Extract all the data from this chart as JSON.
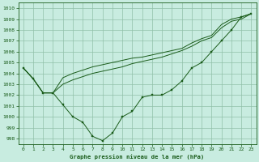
{
  "title": "Graphe pression niveau de la mer (hPa)",
  "bg_color": "#c8ece0",
  "grid_color": "#90c0a8",
  "line_color": "#1a5c1a",
  "ylim": [
    997.5,
    1010.5
  ],
  "xlim": [
    -0.5,
    23.5
  ],
  "yticks": [
    998,
    999,
    1000,
    1001,
    1002,
    1003,
    1004,
    1005,
    1006,
    1007,
    1008,
    1009,
    1010
  ],
  "xticks": [
    0,
    1,
    2,
    3,
    4,
    5,
    6,
    7,
    8,
    9,
    10,
    11,
    12,
    13,
    14,
    15,
    16,
    17,
    18,
    19,
    20,
    21,
    22,
    23
  ],
  "series_wavy": [
    1004.5,
    1003.5,
    1002.2,
    1002.2,
    1001.1,
    1000.0,
    999.5,
    998.2,
    997.8,
    998.5,
    1000.0,
    1000.5,
    1001.8,
    1002.0,
    1002.0,
    1002.5,
    1003.3,
    1004.5,
    1005.0,
    1006.0,
    1007.0,
    1008.0,
    1009.2,
    1009.5
  ],
  "series_top": [
    1004.5,
    1003.5,
    1002.2,
    1002.2,
    1003.6,
    1004.0,
    1004.3,
    1004.6,
    1004.8,
    1005.0,
    1005.2,
    1005.4,
    1005.5,
    1005.7,
    1005.9,
    1006.1,
    1006.3,
    1006.8,
    1007.2,
    1007.5,
    1008.5,
    1009.0,
    1009.2,
    1009.5
  ],
  "series_mid": [
    1004.5,
    1003.5,
    1002.2,
    1002.2,
    1003.0,
    1003.4,
    1003.7,
    1004.0,
    1004.2,
    1004.4,
    1004.6,
    1004.9,
    1005.1,
    1005.3,
    1005.5,
    1005.8,
    1006.1,
    1006.5,
    1007.0,
    1007.3,
    1008.2,
    1008.8,
    1009.0,
    1009.5
  ],
  "figwidth": 3.2,
  "figheight": 2.0,
  "dpi": 100
}
